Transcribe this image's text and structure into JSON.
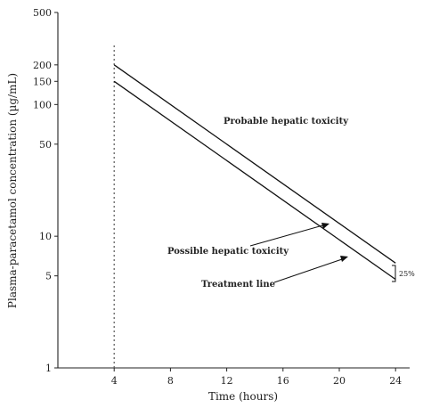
{
  "chart_data": {
    "type": "line",
    "xlabel": "Time (hours)",
    "ylabel": "Plasma-paracetamol concentration (µg/mL)",
    "y_scale": "log",
    "xlim": [
      0,
      25
    ],
    "ylim": [
      1,
      500
    ],
    "x_ticks": [
      4,
      8,
      12,
      16,
      20,
      24
    ],
    "y_ticks": [
      1,
      5,
      10,
      50,
      100,
      150,
      200,
      500
    ],
    "series": [
      {
        "x": [
          4,
          24
        ],
        "values": [
          200,
          6.25
        ]
      },
      {
        "x": [
          4,
          24
        ],
        "values": [
          150,
          4.7
        ]
      }
    ],
    "reference_line": {
      "x": 4,
      "style": "dotted"
    },
    "annotations": {
      "probable": "Probable hepatic toxicity",
      "possible": "Possible hepatic toxicity",
      "treatment": "Treatment line",
      "percent": "25%"
    }
  }
}
